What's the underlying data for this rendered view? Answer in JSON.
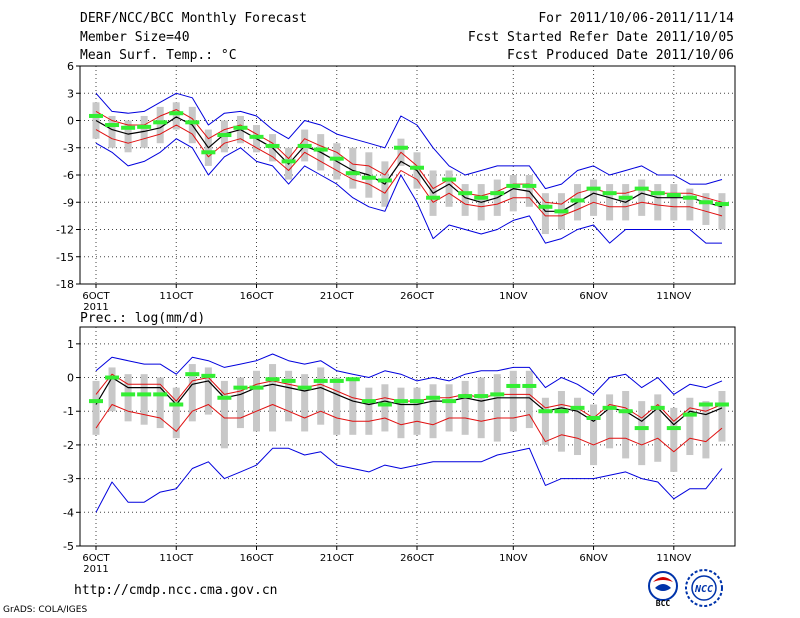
{
  "header": {
    "title": "DERF/NCC/BCC Monthly Forecast",
    "member_size": "Member Size=40",
    "variable": "Mean Surf. Temp.: °C",
    "period": "For 2011/10/06-2011/11/14",
    "started": "Fcst Started Refer Date 2011/10/05",
    "produced": "Fcst Produced Date 2011/10/06"
  },
  "footer": {
    "url": "http://cmdp.ncc.cma.gov.cn",
    "credit": "GrADS: COLA/IGES",
    "logo_left_text": "BCC",
    "logo_right_text": "NCC"
  },
  "colors": {
    "ensemble_mean": "#000000",
    "spread_band": "#e01010",
    "extreme_envelope": "#0000dd",
    "reference": "#33ee33",
    "box": "#c8c8c8"
  },
  "chart_data": [
    {
      "id": "temperature",
      "type": "line",
      "title": "Mean Surf. Temp.: °C",
      "ylim": [
        -18,
        6
      ],
      "yticks": [
        6,
        3,
        0,
        -3,
        -6,
        -9,
        -12,
        -15,
        -18
      ],
      "tick_labels": [
        "6OCT",
        "11OCT",
        "16OCT",
        "21OCT",
        "26OCT",
        "1NOV",
        "6NOV",
        "11NOV"
      ],
      "year_label": "2011",
      "x_days": 40,
      "series": [
        {
          "name": "mean",
          "color": "#000000",
          "values": [
            0.0,
            -1.0,
            -1.5,
            -1.2,
            -0.8,
            0.4,
            -0.5,
            -3.0,
            -1.5,
            -1.0,
            -2.0,
            -3.0,
            -4.8,
            -2.8,
            -3.5,
            -4.5,
            -5.5,
            -6.0,
            -7.0,
            -4.5,
            -5.5,
            -8.0,
            -7.0,
            -8.5,
            -9.0,
            -8.5,
            -7.5,
            -7.8,
            -10.0,
            -10.0,
            -9.0,
            -8.0,
            -8.5,
            -9.0,
            -8.0,
            -8.5,
            -8.5,
            -8.5,
            -9.0,
            -9.5
          ]
        },
        {
          "name": "upper",
          "color": "#e01010",
          "values": [
            1.0,
            0.0,
            -0.5,
            -0.5,
            0.5,
            1.2,
            0.2,
            -2.0,
            -1.0,
            -0.5,
            -1.5,
            -2.5,
            -4.2,
            -2.0,
            -2.8,
            -3.5,
            -4.8,
            -5.0,
            -6.0,
            -3.5,
            -5.0,
            -7.5,
            -6.5,
            -8.0,
            -8.3,
            -7.8,
            -7.0,
            -7.0,
            -9.0,
            -9.2,
            -8.0,
            -7.5,
            -8.0,
            -8.0,
            -7.5,
            -8.0,
            -8.0,
            -8.0,
            -8.5,
            -9.0
          ]
        },
        {
          "name": "lower",
          "color": "#e01010",
          "values": [
            -1.0,
            -2.0,
            -2.5,
            -2.0,
            -1.5,
            -0.5,
            -1.5,
            -4.0,
            -2.5,
            -2.0,
            -3.0,
            -4.0,
            -5.5,
            -3.5,
            -4.5,
            -5.5,
            -6.5,
            -7.0,
            -8.0,
            -5.5,
            -6.5,
            -9.0,
            -8.0,
            -9.2,
            -9.5,
            -9.2,
            -8.5,
            -8.5,
            -10.5,
            -10.5,
            -9.8,
            -9.0,
            -9.5,
            -9.5,
            -9.0,
            -9.3,
            -9.5,
            -9.5,
            -10.0,
            -10.5
          ]
        },
        {
          "name": "maximum",
          "color": "#0000dd",
          "values": [
            3.0,
            1.0,
            0.8,
            1.0,
            2.0,
            3.0,
            2.5,
            -0.5,
            0.8,
            1.0,
            0.5,
            -1.0,
            -2.0,
            0.0,
            -0.5,
            -1.5,
            -2.0,
            -2.5,
            -3.0,
            0.5,
            -0.5,
            -3.0,
            -5.0,
            -6.0,
            -5.5,
            -5.0,
            -5.0,
            -5.0,
            -7.5,
            -7.0,
            -5.5,
            -5.0,
            -6.0,
            -5.5,
            -5.0,
            -6.0,
            -6.0,
            -7.0,
            -7.0,
            -6.5
          ]
        },
        {
          "name": "minimum",
          "color": "#0000dd",
          "values": [
            -2.5,
            -3.5,
            -5.0,
            -4.5,
            -3.5,
            -2.0,
            -3.0,
            -6.0,
            -4.0,
            -3.0,
            -4.5,
            -5.0,
            -7.0,
            -5.0,
            -6.0,
            -7.0,
            -8.5,
            -9.5,
            -10.0,
            -6.0,
            -9.0,
            -13.0,
            -11.5,
            -12.0,
            -12.5,
            -12.0,
            -11.0,
            -10.5,
            -13.5,
            -13.0,
            -12.0,
            -11.5,
            -13.5,
            -12.0,
            -12.0,
            -12.0,
            -12.0,
            -12.0,
            -13.5,
            -13.5
          ]
        },
        {
          "name": "reference",
          "color": "#33ee33",
          "values": [
            0.5,
            -0.5,
            -0.8,
            -0.7,
            -0.2,
            0.8,
            -0.2,
            -3.5,
            -1.6,
            -0.8,
            -1.8,
            -2.8,
            -4.5,
            -2.8,
            -3.2,
            -4.2,
            -5.8,
            -6.3,
            -6.6,
            -3.0,
            -5.2,
            -8.5,
            -6.5,
            -8.0,
            -8.5,
            -8.0,
            -7.2,
            -7.2,
            -9.5,
            -10.0,
            -8.8,
            -7.5,
            -8.0,
            -8.5,
            -7.5,
            -8.0,
            -8.2,
            -8.5,
            -9.0,
            -9.2
          ]
        },
        {
          "name": "box_top",
          "color": "#c8c8c8",
          "values": [
            2.0,
            0.5,
            0.0,
            0.5,
            1.5,
            2.0,
            1.5,
            -1.0,
            0.0,
            0.5,
            -0.5,
            -1.5,
            -3.0,
            -1.0,
            -1.5,
            -2.5,
            -3.0,
            -3.5,
            -4.5,
            -2.0,
            -3.5,
            -5.5,
            -5.5,
            -7.0,
            -7.0,
            -6.5,
            -6.0,
            -6.0,
            -8.0,
            -8.0,
            -7.0,
            -6.5,
            -7.0,
            -7.0,
            -6.5,
            -7.0,
            -7.0,
            -7.5,
            -8.0,
            -8.0
          ]
        },
        {
          "name": "box_bottom",
          "color": "#c8c8c8",
          "values": [
            -2.0,
            -3.0,
            -3.5,
            -3.0,
            -2.5,
            -1.0,
            -2.5,
            -5.0,
            -3.5,
            -2.5,
            -3.5,
            -4.5,
            -6.5,
            -4.5,
            -5.5,
            -6.5,
            -7.5,
            -8.5,
            -9.5,
            -5.0,
            -7.5,
            -10.5,
            -9.5,
            -10.5,
            -11.0,
            -10.5,
            -10.0,
            -9.5,
            -12.5,
            -12.0,
            -11.0,
            -10.5,
            -11.0,
            -11.0,
            -10.5,
            -11.0,
            -11.0,
            -11.0,
            -11.5,
            -12.0
          ]
        }
      ]
    },
    {
      "id": "precipitation",
      "type": "line",
      "title": "Prec.: log(mm/d)",
      "ylim": [
        -5,
        1.5
      ],
      "yticks": [
        1,
        0,
        -1,
        -2,
        -3,
        -4,
        -5
      ],
      "tick_labels": [
        "6OCT",
        "11OCT",
        "16OCT",
        "21OCT",
        "26OCT",
        "1NOV",
        "6NOV",
        "11NOV"
      ],
      "year_label": "2011",
      "x_days": 40,
      "series": [
        {
          "name": "mean",
          "color": "#000000",
          "values": [
            -0.8,
            0.0,
            -0.3,
            -0.3,
            -0.3,
            -0.8,
            -0.2,
            -0.1,
            -0.6,
            -0.5,
            -0.3,
            -0.2,
            -0.3,
            -0.4,
            -0.3,
            -0.5,
            -0.7,
            -0.8,
            -0.7,
            -0.8,
            -0.8,
            -0.7,
            -0.7,
            -0.6,
            -0.7,
            -0.6,
            -0.6,
            -0.6,
            -1.0,
            -0.9,
            -1.0,
            -1.3,
            -0.9,
            -1.0,
            -1.3,
            -0.9,
            -1.4,
            -1.0,
            -1.1,
            -0.9
          ]
        },
        {
          "name": "upper",
          "color": "#e01010",
          "values": [
            -0.5,
            0.1,
            -0.2,
            -0.2,
            -0.2,
            -0.7,
            -0.1,
            0.0,
            -0.5,
            -0.4,
            -0.2,
            -0.1,
            -0.2,
            -0.3,
            -0.2,
            -0.4,
            -0.6,
            -0.7,
            -0.6,
            -0.7,
            -0.7,
            -0.6,
            -0.6,
            -0.5,
            -0.6,
            -0.5,
            -0.5,
            -0.5,
            -0.9,
            -0.8,
            -0.9,
            -1.2,
            -0.8,
            -0.9,
            -1.2,
            -0.8,
            -1.3,
            -0.9,
            -1.0,
            -0.8
          ]
        },
        {
          "name": "lower",
          "color": "#e01010",
          "values": [
            -1.5,
            -0.8,
            -1.0,
            -1.1,
            -1.2,
            -1.6,
            -1.0,
            -0.8,
            -1.2,
            -1.2,
            -1.0,
            -0.8,
            -1.0,
            -1.2,
            -1.0,
            -1.2,
            -1.3,
            -1.3,
            -1.2,
            -1.4,
            -1.3,
            -1.4,
            -1.2,
            -1.2,
            -1.3,
            -1.2,
            -1.2,
            -1.1,
            -1.9,
            -1.7,
            -1.8,
            -2.0,
            -1.8,
            -1.8,
            -2.0,
            -1.8,
            -2.2,
            -1.8,
            -1.9,
            -1.5
          ]
        },
        {
          "name": "maximum",
          "color": "#0000dd",
          "values": [
            0.2,
            0.6,
            0.5,
            0.4,
            0.4,
            0.1,
            0.6,
            0.5,
            0.3,
            0.4,
            0.5,
            0.7,
            0.5,
            0.4,
            0.5,
            0.2,
            0.1,
            0.0,
            0.2,
            0.1,
            -0.1,
            0.0,
            -0.1,
            0.1,
            0.2,
            0.2,
            0.3,
            0.3,
            -0.3,
            0.0,
            -0.2,
            -0.5,
            0.0,
            0.1,
            -0.3,
            0.0,
            -0.5,
            -0.2,
            -0.3,
            -0.1
          ]
        },
        {
          "name": "minimum",
          "color": "#0000dd",
          "values": [
            -4.0,
            -3.1,
            -3.7,
            -3.7,
            -3.4,
            -3.3,
            -2.7,
            -2.5,
            -3.0,
            -2.8,
            -2.6,
            -2.1,
            -2.1,
            -2.3,
            -2.2,
            -2.6,
            -2.7,
            -2.8,
            -2.6,
            -2.7,
            -2.6,
            -2.5,
            -2.5,
            -2.5,
            -2.5,
            -2.3,
            -2.2,
            -2.1,
            -3.2,
            -3.0,
            -3.0,
            -3.0,
            -2.9,
            -2.8,
            -3.0,
            -3.1,
            -3.6,
            -3.3,
            -3.3,
            -2.7
          ]
        },
        {
          "name": "reference",
          "color": "#33ee33",
          "values": [
            -0.7,
            0.0,
            -0.5,
            -0.5,
            -0.5,
            -0.8,
            0.1,
            0.05,
            -0.6,
            -0.3,
            -0.3,
            -0.05,
            -0.1,
            -0.3,
            -0.1,
            -0.1,
            -0.05,
            -0.7,
            -0.8,
            -0.7,
            -0.7,
            -0.6,
            -0.7,
            -0.55,
            -0.55,
            -0.5,
            -0.25,
            -0.25,
            -1.0,
            -1.0,
            -0.9,
            -1.2,
            -0.9,
            -1.0,
            -1.5,
            -0.9,
            -1.5,
            -1.1,
            -0.8,
            -0.8
          ]
        },
        {
          "name": "box_top",
          "color": "#c8c8c8",
          "values": [
            -0.1,
            0.3,
            0.1,
            0.1,
            0.0,
            -0.3,
            0.4,
            0.3,
            -0.1,
            0.0,
            0.2,
            0.4,
            0.2,
            0.1,
            0.3,
            0.0,
            -0.1,
            -0.3,
            -0.2,
            -0.3,
            -0.3,
            -0.2,
            -0.2,
            -0.1,
            0.0,
            0.1,
            0.2,
            0.2,
            -0.6,
            -0.4,
            -0.6,
            -0.8,
            -0.5,
            -0.4,
            -0.7,
            -0.5,
            -0.9,
            -0.6,
            -0.7,
            -0.4
          ]
        },
        {
          "name": "box_bottom",
          "color": "#c8c8c8",
          "values": [
            -1.7,
            -1.0,
            -1.3,
            -1.4,
            -1.5,
            -1.8,
            -1.3,
            -1.1,
            -2.1,
            -1.5,
            -1.6,
            -1.6,
            -1.3,
            -1.6,
            -1.4,
            -1.7,
            -1.7,
            -1.7,
            -1.6,
            -1.8,
            -1.7,
            -1.8,
            -1.6,
            -1.7,
            -1.8,
            -1.9,
            -1.6,
            -1.5,
            -2.0,
            -2.2,
            -2.3,
            -2.6,
            -2.1,
            -2.4,
            -2.6,
            -2.5,
            -2.8,
            -2.3,
            -2.4,
            -1.9
          ]
        }
      ]
    }
  ]
}
